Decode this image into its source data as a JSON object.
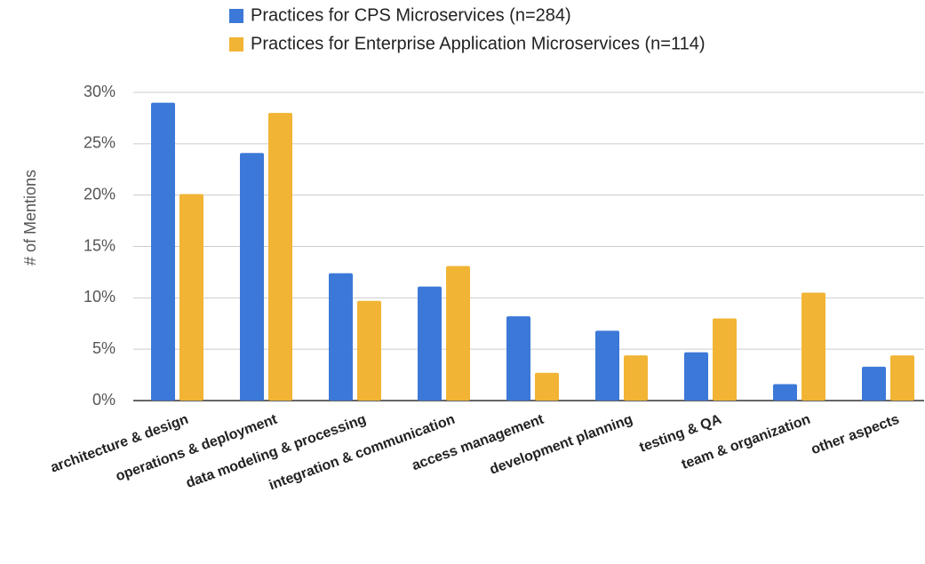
{
  "chart_data": {
    "type": "bar",
    "y_label": "# of Mentions",
    "categories": [
      "architecture & design",
      "operations & deployment",
      "data modeling & processing",
      "integration & communication",
      "access management",
      "development planning",
      "testing & QA",
      "team & organization",
      "other aspects"
    ],
    "series": [
      {
        "name": "Practices for CPS Microservices (n=284)",
        "color": "#3c78d8",
        "values": [
          29.0,
          24.1,
          12.4,
          11.1,
          8.2,
          6.8,
          4.7,
          1.6,
          3.3
        ]
      },
      {
        "name": "Practices for Enterprise Application Microservices (n=114)",
        "color": "#f1b434",
        "values": [
          20.1,
          28.0,
          9.7,
          13.1,
          2.7,
          4.4,
          8.0,
          10.5,
          4.4
        ]
      }
    ],
    "ylim": [
      0,
      30
    ],
    "yticks": [
      {
        "value": 0,
        "label": "0%"
      },
      {
        "value": 5,
        "label": "5%"
      },
      {
        "value": 10,
        "label": "10%"
      },
      {
        "value": 15,
        "label": "15%"
      },
      {
        "value": 20,
        "label": "20%"
      },
      {
        "value": 25,
        "label": "25%"
      },
      {
        "value": 30,
        "label": "30%"
      }
    ],
    "grid": true
  }
}
